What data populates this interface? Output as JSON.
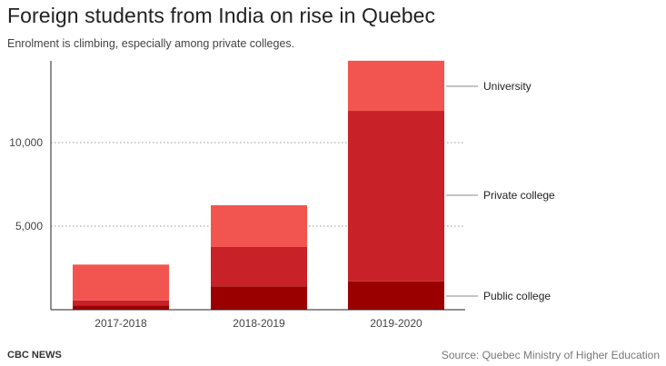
{
  "header": {
    "title": "Foreign students from India on rise in Quebec",
    "subtitle": "Enrolment is climbing, especially among private colleges."
  },
  "footer": {
    "brand": "CBC NEWS",
    "source": "Source: Quebec Ministry of Higher Education"
  },
  "chart_data": {
    "type": "bar",
    "stacked": true,
    "title": "Foreign students from India on rise in Quebec",
    "subtitle": "Enrolment is climbing, especially among private colleges.",
    "categories": [
      "2017-2018",
      "2018-2019",
      "2019-2020"
    ],
    "series": [
      {
        "name": "Public college",
        "values": [
          250,
          1400,
          1700
        ],
        "color": "#9b0000"
      },
      {
        "name": "Private college",
        "values": [
          300,
          2350,
          10200
        ],
        "color": "#c82127"
      },
      {
        "name": "University",
        "values": [
          2150,
          2500,
          3000
        ],
        "color": "#f2554f"
      }
    ],
    "yticks": [
      5000,
      10000
    ],
    "ytick_labels": [
      "5,000",
      "10,000"
    ],
    "ylim": [
      0,
      15000
    ],
    "grid": true,
    "legend": "right, direct labels on last bar"
  }
}
